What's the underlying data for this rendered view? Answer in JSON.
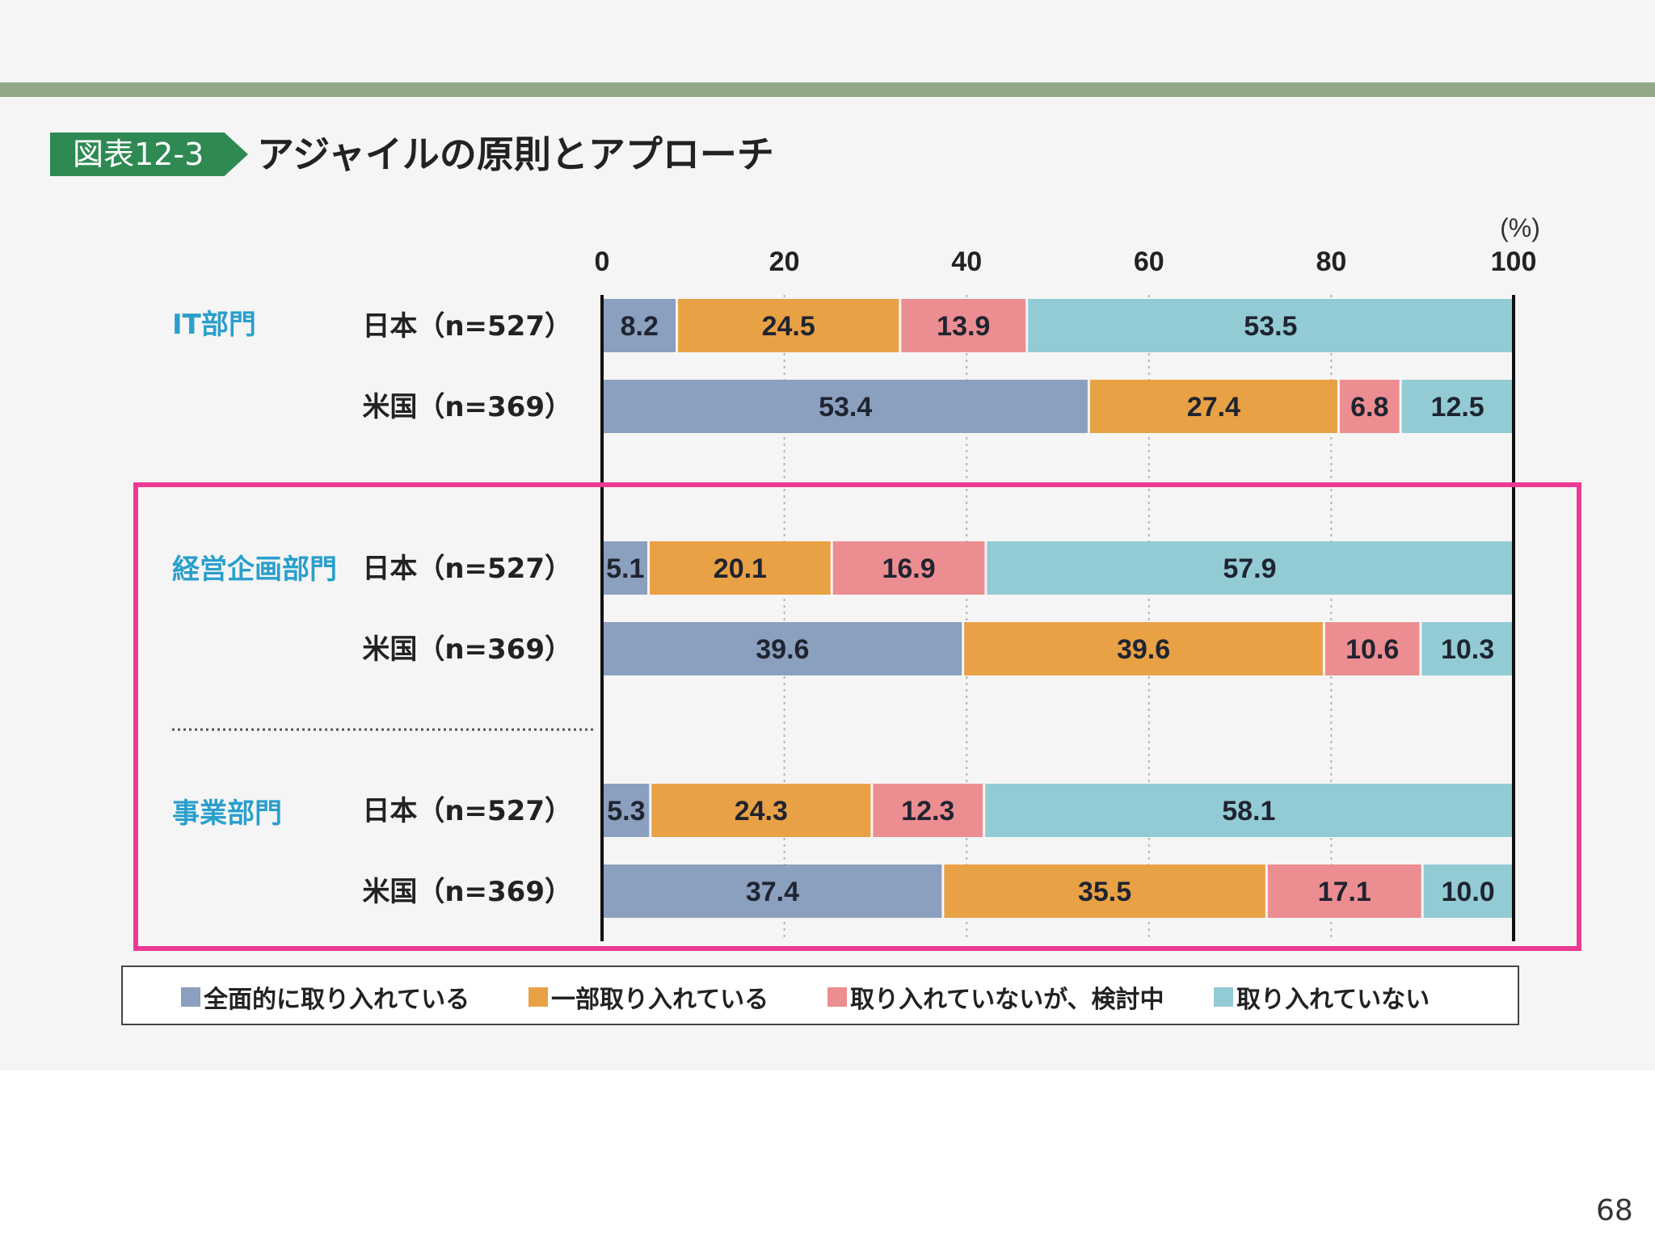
{
  "header": {
    "figure_label": "図表12-3",
    "title": "アジャイルの原則とアプローチ"
  },
  "page_number": "68",
  "colors": {
    "full": "#8b9fbe",
    "partial": "#e9a145",
    "considering": "#ec8d91",
    "none": "#93cbd4",
    "group_label": "#2a9fcc",
    "highlight": "#ec3a94"
  },
  "chart_data": {
    "type": "bar",
    "stacked": true,
    "orientation": "horizontal",
    "unit": "(%)",
    "xlim": [
      0,
      100
    ],
    "xticks": [
      0,
      20,
      40,
      60,
      80,
      100
    ],
    "series_names": [
      "全面的に取り入れている",
      "一部取り入れている",
      "取り入れていないが、検討中",
      "取り入れていない"
    ],
    "groups": [
      {
        "name": "IT部門",
        "rows": [
          {
            "label": "日本（n=527）",
            "values": [
              8.2,
              24.5,
              13.9,
              53.5
            ]
          },
          {
            "label": "米国（n=369）",
            "values": [
              53.4,
              27.4,
              6.8,
              12.5
            ]
          }
        ]
      },
      {
        "name": "経営企画部門",
        "rows": [
          {
            "label": "日本（n=527）",
            "values": [
              5.1,
              20.1,
              16.9,
              57.9
            ]
          },
          {
            "label": "米国（n=369）",
            "values": [
              39.6,
              39.6,
              10.6,
              10.3
            ]
          }
        ]
      },
      {
        "name": "事業部門",
        "rows": [
          {
            "label": "日本（n=527）",
            "values": [
              5.3,
              24.3,
              12.3,
              58.1
            ]
          },
          {
            "label": "米国（n=369）",
            "values": [
              37.4,
              35.5,
              17.1,
              10.0
            ]
          }
        ]
      }
    ]
  },
  "legend": [
    {
      "label": "全面的に取り入れている"
    },
    {
      "label": "一部取り入れている"
    },
    {
      "label": "取り入れていないが、検討中"
    },
    {
      "label": "取り入れていない"
    }
  ]
}
